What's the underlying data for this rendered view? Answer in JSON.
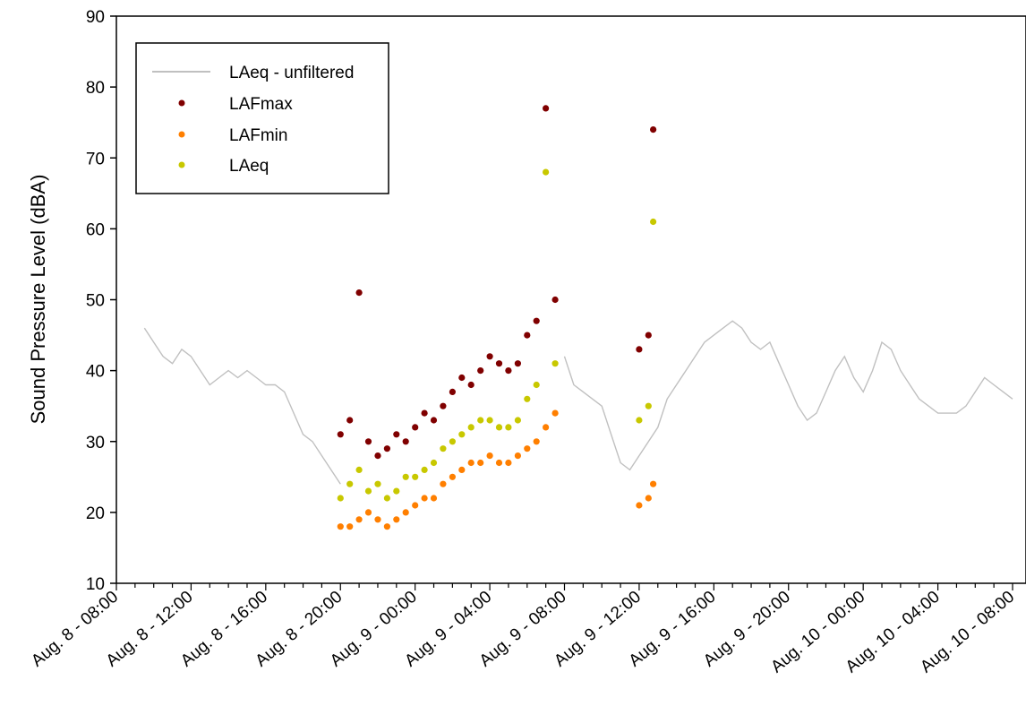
{
  "chart_data": {
    "type": "scatter",
    "title": "",
    "xlabel": "",
    "ylabel": "Sound Pressure Level (dBA)",
    "ylim": [
      10,
      90
    ],
    "yticks": [
      "10",
      "20",
      "30",
      "40",
      "50",
      "60",
      "70",
      "80",
      "90"
    ],
    "xlim": [
      "Aug. 8 - 08:00",
      "Aug. 10 - 08:00"
    ],
    "xticks": [
      "Aug. 8 - 08:00",
      "Aug. 8 - 12:00",
      "Aug. 8 - 16:00",
      "Aug. 8 - 20:00",
      "Aug. 9 - 00:00",
      "Aug. 9 - 04:00",
      "Aug. 9 - 08:00",
      "Aug. 9 - 12:00",
      "Aug. 9 - 16:00",
      "Aug. 9 - 20:00",
      "Aug. 10 - 00:00",
      "Aug. 10 - 04:00",
      "Aug. 10 - 08:00"
    ],
    "grid": false,
    "legend_position": "top-left",
    "colors": {
      "LAeq - unfiltered": "#c0c0c0",
      "LAFmax": "#800000",
      "LAFmin": "#ff7f00",
      "LAeq": "#c8c800"
    },
    "series": [
      {
        "name": "LAeq - unfiltered",
        "type": "line",
        "points": [
          [
            "Aug. 8 - 09:30",
            46
          ],
          [
            "Aug. 8 - 10:00",
            44
          ],
          [
            "Aug. 8 - 10:30",
            42
          ],
          [
            "Aug. 8 - 11:00",
            41
          ],
          [
            "Aug. 8 - 11:30",
            43
          ],
          [
            "Aug. 8 - 12:00",
            42
          ],
          [
            "Aug. 8 - 12:30",
            40
          ],
          [
            "Aug. 8 - 13:00",
            38
          ],
          [
            "Aug. 8 - 13:30",
            39
          ],
          [
            "Aug. 8 - 14:00",
            40
          ],
          [
            "Aug. 8 - 14:30",
            39
          ],
          [
            "Aug. 8 - 15:00",
            40
          ],
          [
            "Aug. 8 - 15:30",
            39
          ],
          [
            "Aug. 8 - 16:00",
            38
          ],
          [
            "Aug. 8 - 16:30",
            38
          ],
          [
            "Aug. 8 - 17:00",
            37
          ],
          [
            "Aug. 8 - 17:30",
            34
          ],
          [
            "Aug. 8 - 18:00",
            31
          ],
          [
            "Aug. 8 - 18:30",
            30
          ],
          [
            "Aug. 8 - 19:00",
            28
          ],
          [
            "Aug. 8 - 19:30",
            26
          ],
          [
            "Aug. 8 - 20:00",
            24
          ],
          [
            "Aug. 9 - 08:00",
            42
          ],
          [
            "Aug. 9 - 08:30",
            38
          ],
          [
            "Aug. 9 - 09:00",
            37
          ],
          [
            "Aug. 9 - 09:30",
            36
          ],
          [
            "Aug. 9 - 10:00",
            35
          ],
          [
            "Aug. 9 - 10:30",
            31
          ],
          [
            "Aug. 9 - 11:00",
            27
          ],
          [
            "Aug. 9 - 11:30",
            26
          ],
          [
            "Aug. 9 - 12:00",
            28
          ],
          [
            "Aug. 9 - 13:00",
            32
          ],
          [
            "Aug. 9 - 13:30",
            36
          ],
          [
            "Aug. 9 - 14:00",
            38
          ],
          [
            "Aug. 9 - 14:30",
            40
          ],
          [
            "Aug. 9 - 15:00",
            42
          ],
          [
            "Aug. 9 - 15:30",
            44
          ],
          [
            "Aug. 9 - 16:00",
            45
          ],
          [
            "Aug. 9 - 16:30",
            46
          ],
          [
            "Aug. 9 - 17:00",
            47
          ],
          [
            "Aug. 9 - 17:30",
            46
          ],
          [
            "Aug. 9 - 18:00",
            44
          ],
          [
            "Aug. 9 - 18:30",
            43
          ],
          [
            "Aug. 9 - 19:00",
            44
          ],
          [
            "Aug. 9 - 19:30",
            41
          ],
          [
            "Aug. 9 - 20:00",
            38
          ],
          [
            "Aug. 9 - 20:30",
            35
          ],
          [
            "Aug. 9 - 21:00",
            33
          ],
          [
            "Aug. 9 - 21:30",
            34
          ],
          [
            "Aug. 9 - 22:00",
            37
          ],
          [
            "Aug. 9 - 22:30",
            40
          ],
          [
            "Aug. 9 - 23:00",
            42
          ],
          [
            "Aug. 9 - 23:30",
            39
          ],
          [
            "Aug. 10 - 00:00",
            37
          ],
          [
            "Aug. 10 - 00:30",
            40
          ],
          [
            "Aug. 10 - 01:00",
            44
          ],
          [
            "Aug. 10 - 01:30",
            43
          ],
          [
            "Aug. 10 - 02:00",
            40
          ],
          [
            "Aug. 10 - 02:30",
            38
          ],
          [
            "Aug. 10 - 03:00",
            36
          ],
          [
            "Aug. 10 - 03:30",
            35
          ],
          [
            "Aug. 10 - 04:00",
            34
          ],
          [
            "Aug. 10 - 04:30",
            34
          ],
          [
            "Aug. 10 - 05:00",
            34
          ],
          [
            "Aug. 10 - 05:30",
            35
          ],
          [
            "Aug. 10 - 06:00",
            37
          ],
          [
            "Aug. 10 - 06:30",
            39
          ],
          [
            "Aug. 10 - 07:00",
            38
          ],
          [
            "Aug. 10 - 07:30",
            37
          ],
          [
            "Aug. 10 - 08:00",
            36
          ]
        ]
      },
      {
        "name": "LAFmax",
        "type": "scatter",
        "points": [
          [
            "Aug. 8 - 20:00",
            31
          ],
          [
            "Aug. 8 - 20:30",
            33
          ],
          [
            "Aug. 8 - 21:00",
            51
          ],
          [
            "Aug. 8 - 21:30",
            30
          ],
          [
            "Aug. 8 - 22:00",
            28
          ],
          [
            "Aug. 8 - 22:30",
            29
          ],
          [
            "Aug. 8 - 23:00",
            31
          ],
          [
            "Aug. 8 - 23:30",
            30
          ],
          [
            "Aug. 9 - 00:00",
            32
          ],
          [
            "Aug. 9 - 00:30",
            34
          ],
          [
            "Aug. 9 - 01:00",
            33
          ],
          [
            "Aug. 9 - 01:30",
            35
          ],
          [
            "Aug. 9 - 02:00",
            37
          ],
          [
            "Aug. 9 - 02:30",
            39
          ],
          [
            "Aug. 9 - 03:00",
            38
          ],
          [
            "Aug. 9 - 03:30",
            40
          ],
          [
            "Aug. 9 - 04:00",
            42
          ],
          [
            "Aug. 9 - 04:30",
            41
          ],
          [
            "Aug. 9 - 05:00",
            40
          ],
          [
            "Aug. 9 - 05:30",
            41
          ],
          [
            "Aug. 9 - 06:00",
            45
          ],
          [
            "Aug. 9 - 06:30",
            47
          ],
          [
            "Aug. 9 - 07:00",
            77
          ],
          [
            "Aug. 9 - 07:30",
            50
          ],
          [
            "Aug. 9 - 12:00",
            43
          ],
          [
            "Aug. 9 - 12:30",
            45
          ],
          [
            "Aug. 9 - 12:45",
            74
          ]
        ]
      },
      {
        "name": "LAFmin",
        "type": "scatter",
        "points": [
          [
            "Aug. 8 - 20:00",
            18
          ],
          [
            "Aug. 8 - 20:30",
            18
          ],
          [
            "Aug. 8 - 21:00",
            19
          ],
          [
            "Aug. 8 - 21:30",
            20
          ],
          [
            "Aug. 8 - 22:00",
            19
          ],
          [
            "Aug. 8 - 22:30",
            18
          ],
          [
            "Aug. 8 - 23:00",
            19
          ],
          [
            "Aug. 8 - 23:30",
            20
          ],
          [
            "Aug. 9 - 00:00",
            21
          ],
          [
            "Aug. 9 - 00:30",
            22
          ],
          [
            "Aug. 9 - 01:00",
            22
          ],
          [
            "Aug. 9 - 01:30",
            24
          ],
          [
            "Aug. 9 - 02:00",
            25
          ],
          [
            "Aug. 9 - 02:30",
            26
          ],
          [
            "Aug. 9 - 03:00",
            27
          ],
          [
            "Aug. 9 - 03:30",
            27
          ],
          [
            "Aug. 9 - 04:00",
            28
          ],
          [
            "Aug. 9 - 04:30",
            27
          ],
          [
            "Aug. 9 - 05:00",
            27
          ],
          [
            "Aug. 9 - 05:30",
            28
          ],
          [
            "Aug. 9 - 06:00",
            29
          ],
          [
            "Aug. 9 - 06:30",
            30
          ],
          [
            "Aug. 9 - 07:00",
            32
          ],
          [
            "Aug. 9 - 07:30",
            34
          ],
          [
            "Aug. 9 - 12:00",
            21
          ],
          [
            "Aug. 9 - 12:30",
            22
          ],
          [
            "Aug. 9 - 12:45",
            24
          ]
        ]
      },
      {
        "name": "LAeq",
        "type": "scatter",
        "points": [
          [
            "Aug. 8 - 20:00",
            22
          ],
          [
            "Aug. 8 - 20:30",
            24
          ],
          [
            "Aug. 8 - 21:00",
            26
          ],
          [
            "Aug. 8 - 21:30",
            23
          ],
          [
            "Aug. 8 - 22:00",
            24
          ],
          [
            "Aug. 8 - 22:30",
            22
          ],
          [
            "Aug. 8 - 23:00",
            23
          ],
          [
            "Aug. 8 - 23:30",
            25
          ],
          [
            "Aug. 9 - 00:00",
            25
          ],
          [
            "Aug. 9 - 00:30",
            26
          ],
          [
            "Aug. 9 - 01:00",
            27
          ],
          [
            "Aug. 9 - 01:30",
            29
          ],
          [
            "Aug. 9 - 02:00",
            30
          ],
          [
            "Aug. 9 - 02:30",
            31
          ],
          [
            "Aug. 9 - 03:00",
            32
          ],
          [
            "Aug. 9 - 03:30",
            33
          ],
          [
            "Aug. 9 - 04:00",
            33
          ],
          [
            "Aug. 9 - 04:30",
            32
          ],
          [
            "Aug. 9 - 05:00",
            32
          ],
          [
            "Aug. 9 - 05:30",
            33
          ],
          [
            "Aug. 9 - 06:00",
            36
          ],
          [
            "Aug. 9 - 06:30",
            38
          ],
          [
            "Aug. 9 - 07:00",
            68
          ],
          [
            "Aug. 9 - 07:30",
            41
          ],
          [
            "Aug. 9 - 12:00",
            33
          ],
          [
            "Aug. 9 - 12:30",
            35
          ],
          [
            "Aug. 9 - 12:45",
            61
          ]
        ]
      }
    ]
  }
}
